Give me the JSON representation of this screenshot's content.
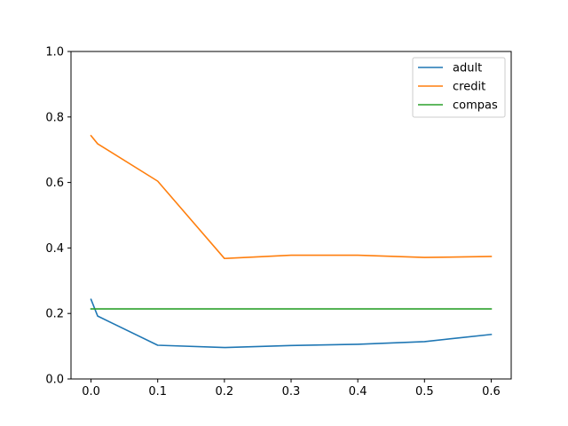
{
  "chart_data": {
    "type": "line",
    "title": "",
    "xlabel": "",
    "ylabel": "",
    "xlim": [
      -0.03,
      0.63
    ],
    "ylim": [
      0,
      1
    ],
    "xticks": [
      0.0,
      0.1,
      0.2,
      0.3,
      0.4,
      0.5,
      0.6
    ],
    "xtick_labels": [
      "0.0",
      "0.1",
      "0.2",
      "0.3",
      "0.4",
      "0.5",
      "0.6"
    ],
    "yticks": [
      0.0,
      0.2,
      0.4,
      0.6,
      0.8,
      1.0
    ],
    "ytick_labels": [
      "0.0",
      "0.2",
      "0.4",
      "0.6",
      "0.8",
      "1.0"
    ],
    "grid": false,
    "legend_position": "top-right",
    "x": [
      0.0,
      0.01,
      0.1,
      0.2,
      0.3,
      0.4,
      0.5,
      0.6
    ],
    "series": [
      {
        "name": "adult",
        "color": "#1f77b4",
        "values": [
          0.243,
          0.192,
          0.103,
          0.096,
          0.102,
          0.106,
          0.114,
          0.136
        ]
      },
      {
        "name": "credit",
        "color": "#ff7f0e",
        "values": [
          0.743,
          0.718,
          0.604,
          0.368,
          0.378,
          0.378,
          0.371,
          0.374
        ]
      },
      {
        "name": "compas",
        "color": "#2ca02c",
        "values": [
          0.214,
          0.214,
          0.214,
          0.214,
          0.214,
          0.214,
          0.214,
          0.214
        ]
      }
    ]
  }
}
